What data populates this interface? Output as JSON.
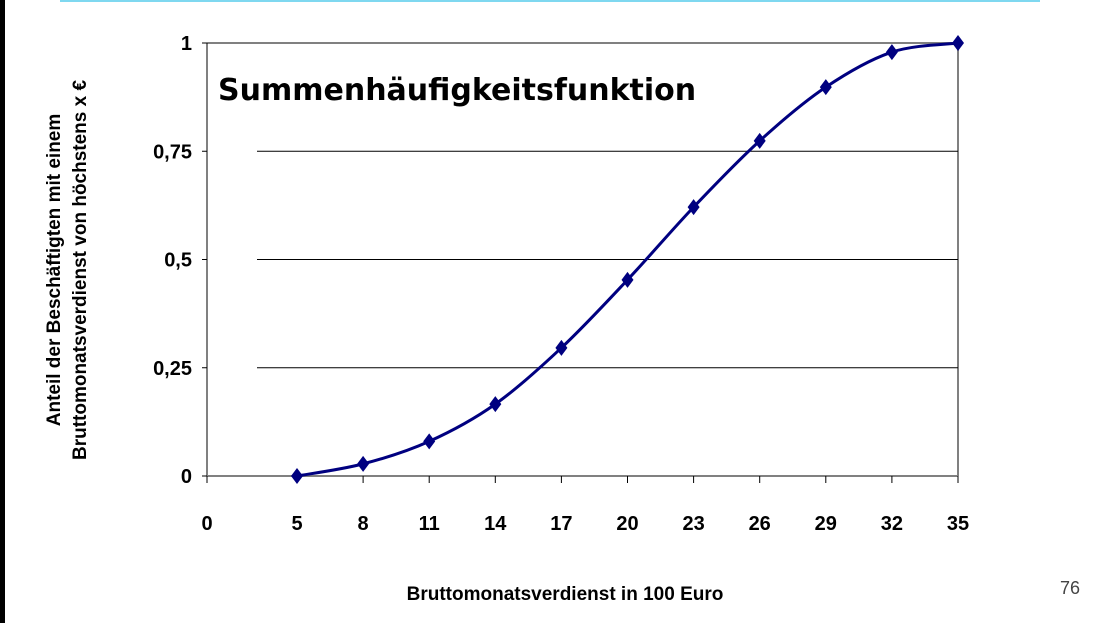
{
  "page_number": "76",
  "chart_data": {
    "type": "line",
    "title": "Summenhäufigkeitsfunktion",
    "xlabel": "Bruttomonatsverdienst in 100 Euro",
    "ylabel": [
      "Anteil der Beschäftigten mit einem",
      "Bruttomonatsverdienst von höchstens x €"
    ],
    "x_tick_labels": [
      "0",
      "5",
      "8",
      "11",
      "14",
      "17",
      "20",
      "23",
      "26",
      "29",
      "32",
      "35"
    ],
    "y_tick_labels": [
      "0",
      "0,25",
      "0,5",
      "0,75",
      "1"
    ],
    "y_ticks": [
      0,
      0.25,
      0.5,
      0.75,
      1
    ],
    "ylim": [
      0,
      1
    ],
    "grid": "horizontal",
    "smoothed": true,
    "marker": "diamond",
    "series": [
      {
        "color": "#000080",
        "x": [
          5,
          8,
          11,
          14,
          17,
          20,
          23,
          26,
          29,
          32,
          35
        ],
        "y": [
          0.0,
          0.028,
          0.08,
          0.166,
          0.296,
          0.453,
          0.621,
          0.774,
          0.898,
          0.979,
          1.0
        ]
      }
    ]
  }
}
